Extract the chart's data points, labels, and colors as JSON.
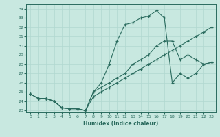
{
  "xlabel": "Humidex (Indice chaleur)",
  "ylabel": "",
  "bg_color": "#c8e8e0",
  "line_color": "#2a6b5e",
  "grid_color": "#b0d8d0",
  "xlim": [
    -0.5,
    23.5
  ],
  "ylim": [
    22.8,
    34.5
  ],
  "yticks": [
    23,
    24,
    25,
    26,
    27,
    28,
    29,
    30,
    31,
    32,
    33,
    34
  ],
  "xticks": [
    0,
    1,
    2,
    3,
    4,
    5,
    6,
    7,
    8,
    9,
    10,
    11,
    12,
    13,
    14,
    15,
    16,
    17,
    18,
    19,
    20,
    21,
    22,
    23
  ],
  "series1_y": [
    24.8,
    24.3,
    24.3,
    24.0,
    23.3,
    23.2,
    23.2,
    23.0,
    25.0,
    26.0,
    28.0,
    30.5,
    32.3,
    32.5,
    33.0,
    33.2,
    33.8,
    33.0,
    26.0,
    27.0,
    26.5,
    27.0,
    28.0,
    28.2
  ],
  "series2_y": [
    24.8,
    24.3,
    24.3,
    24.0,
    23.3,
    23.2,
    23.2,
    23.0,
    25.0,
    25.5,
    26.0,
    26.5,
    27.0,
    28.0,
    28.5,
    29.0,
    30.0,
    30.5,
    30.5,
    28.5,
    29.0,
    28.5,
    28.0,
    28.2
  ],
  "series3_y": [
    24.8,
    24.3,
    24.3,
    24.0,
    23.3,
    23.2,
    23.2,
    23.0,
    24.5,
    25.0,
    25.5,
    26.0,
    26.5,
    27.0,
    27.5,
    28.0,
    28.5,
    29.0,
    29.5,
    30.0,
    30.5,
    31.0,
    31.5,
    32.0
  ]
}
